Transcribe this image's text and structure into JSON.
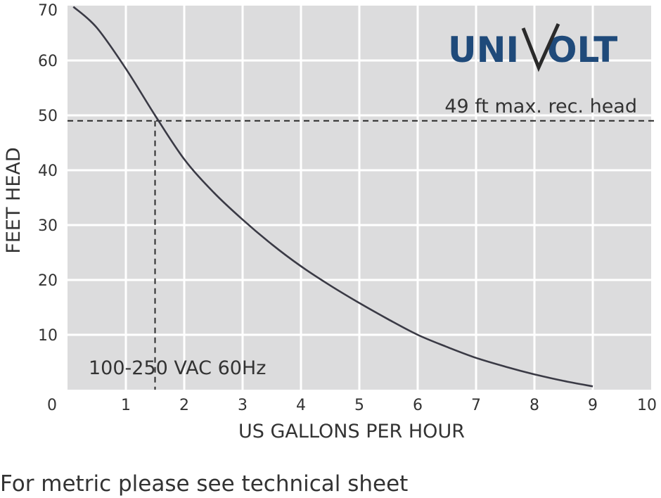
{
  "chart_data": {
    "type": "line",
    "xlabel": "US GALLONS PER HOUR",
    "ylabel": "FEET HEAD",
    "xlim": [
      0,
      10
    ],
    "ylim": [
      0,
      70
    ],
    "x_ticks": [
      "0",
      "1",
      "2",
      "3",
      "4",
      "5",
      "6",
      "7",
      "8",
      "9",
      "10"
    ],
    "y_ticks": [
      "10",
      "20",
      "30",
      "40",
      "50",
      "60",
      "70"
    ],
    "grid": true,
    "background_color": "#dcdcdd",
    "grid_color": "#ffffff",
    "line_color": "#3a3a45",
    "series": [
      {
        "x": [
          0.1,
          0.5,
          1.0,
          1.5,
          2.0,
          2.5,
          3.0,
          3.5,
          4.0,
          4.5,
          5.0,
          5.5,
          6.0,
          6.5,
          7.0,
          7.5,
          8.0,
          8.5,
          9.0
        ],
        "y": [
          69.8,
          66,
          58.5,
          50,
          42,
          36,
          31,
          26.5,
          22.5,
          19,
          15.8,
          12.8,
          10,
          7.8,
          5.8,
          4.2,
          2.8,
          1.6,
          0.6
        ]
      }
    ],
    "reference_line": {
      "label": "49 ft max. rec. head",
      "y": 49,
      "x_at_intersection": 1.5
    },
    "annotation": "100-250 VAC 60Hz"
  },
  "logo": {
    "left": "UNI",
    "v": "V",
    "right": "OLT"
  },
  "footnote": "For metric please see technical sheet"
}
